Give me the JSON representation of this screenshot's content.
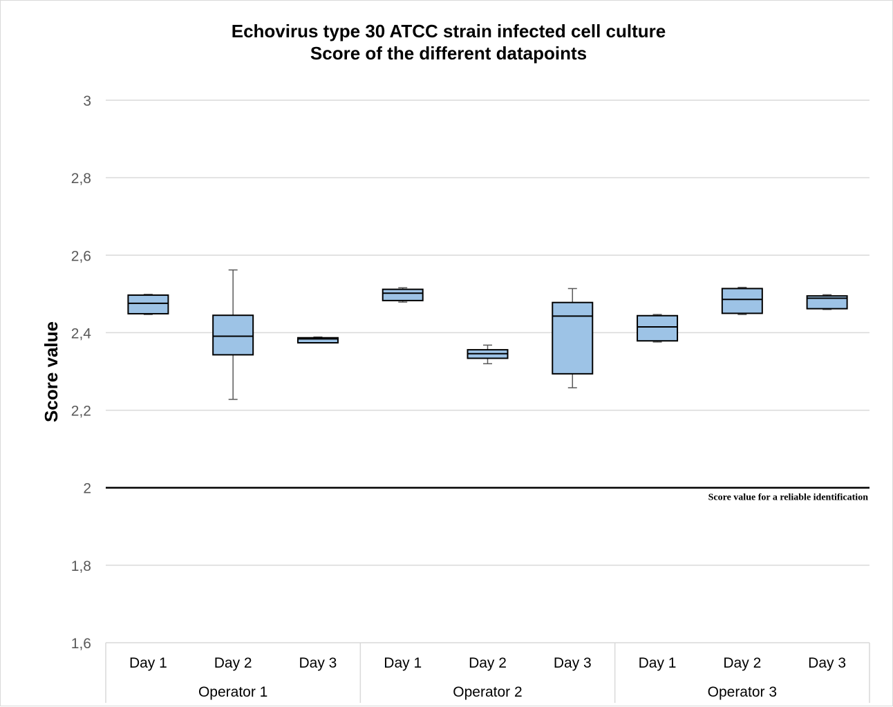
{
  "chart_data": {
    "type": "box",
    "title": "Echovirus type 30 ATCC strain infected cell culture",
    "subtitle": "Score of the different datapoints",
    "ylabel": "Score value",
    "xlabel": "",
    "ylim": [
      1.6,
      3
    ],
    "yticks": [
      1.6,
      1.8,
      2,
      2.2,
      2.4,
      2.6,
      2.8,
      3
    ],
    "ytick_labels": [
      "1,6",
      "1,8",
      "2",
      "2,2",
      "2,4",
      "2,6",
      "2,8",
      "3"
    ],
    "grid": true,
    "reference_line": {
      "value": 2,
      "label": "Score value for a reliable identification"
    },
    "groups": [
      {
        "name": "Operator 1",
        "categories": [
          "Day 1",
          "Day 2",
          "Day 3"
        ]
      },
      {
        "name": "Operator 2",
        "categories": [
          "Day 1",
          "Day 2",
          "Day 3"
        ]
      },
      {
        "name": "Operator 3",
        "categories": [
          "Day 1",
          "Day 2",
          "Day 3"
        ]
      }
    ],
    "boxes": [
      {
        "group": "Operator 1",
        "category": "Day 1",
        "min": 2.447,
        "q1": 2.449,
        "median": 2.476,
        "q3": 2.497,
        "max": 2.499
      },
      {
        "group": "Operator 1",
        "category": "Day 2",
        "min": 2.228,
        "q1": 2.343,
        "median": 2.391,
        "q3": 2.445,
        "max": 2.562
      },
      {
        "group": "Operator 1",
        "category": "Day 3",
        "min": 2.374,
        "q1": 2.374,
        "median": 2.384,
        "q3": 2.387,
        "max": 2.389
      },
      {
        "group": "Operator 2",
        "category": "Day 1",
        "min": 2.479,
        "q1": 2.483,
        "median": 2.502,
        "q3": 2.512,
        "max": 2.516
      },
      {
        "group": "Operator 2",
        "category": "Day 2",
        "min": 2.32,
        "q1": 2.334,
        "median": 2.346,
        "q3": 2.356,
        "max": 2.368
      },
      {
        "group": "Operator 2",
        "category": "Day 3",
        "min": 2.258,
        "q1": 2.294,
        "median": 2.443,
        "q3": 2.478,
        "max": 2.514
      },
      {
        "group": "Operator 3",
        "category": "Day 1",
        "min": 2.376,
        "q1": 2.379,
        "median": 2.415,
        "q3": 2.444,
        "max": 2.447
      },
      {
        "group": "Operator 3",
        "category": "Day 2",
        "min": 2.447,
        "q1": 2.45,
        "median": 2.486,
        "q3": 2.514,
        "max": 2.517
      },
      {
        "group": "Operator 3",
        "category": "Day 3",
        "min": 2.46,
        "q1": 2.462,
        "median": 2.489,
        "q3": 2.495,
        "max": 2.498
      }
    ],
    "colors": {
      "box_fill": "#9dc3e6",
      "box_stroke": "#000000",
      "whisker": "#595959",
      "grid": "#d9d9d9",
      "reference": "#000000"
    }
  }
}
